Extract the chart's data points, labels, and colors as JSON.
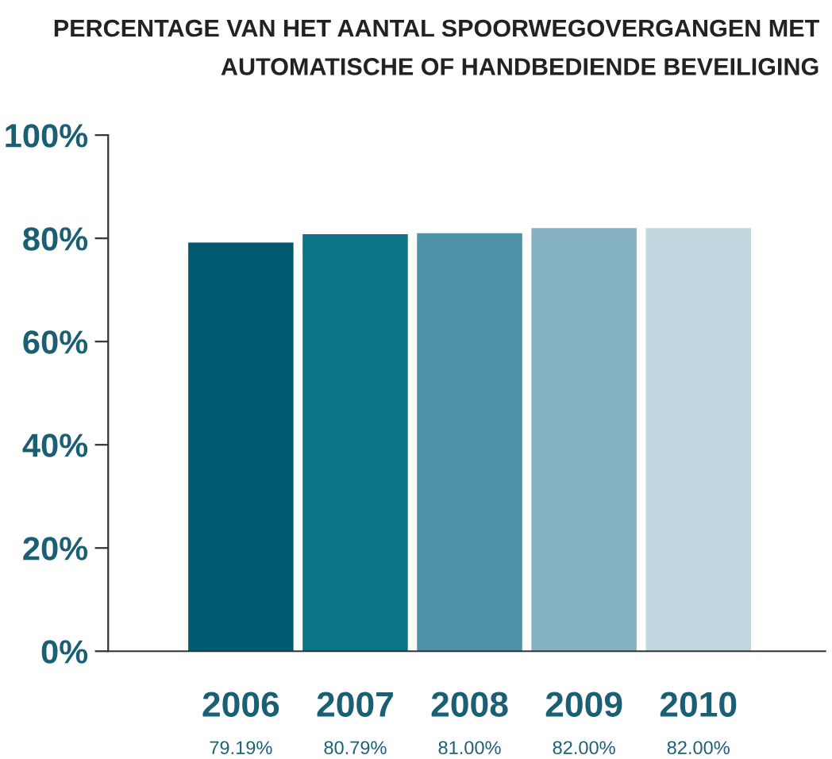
{
  "chart_data": {
    "type": "bar",
    "title": "PERCENTAGE VAN HET AANTAL SPOORWEGOVERGANGEN MET\nAUTOMATISCHE OF HANDBEDIENDE BEVEILIGING",
    "categories": [
      "2006",
      "2007",
      "2008",
      "2009",
      "2010"
    ],
    "values": [
      79.19,
      80.79,
      81.0,
      82.0,
      82.0
    ],
    "colors": [
      "#005a70",
      "#0a7489",
      "#4e93a9",
      "#86b3c3",
      "#c0d7e0"
    ],
    "value_labels": [
      "79.19%",
      "80.79%",
      "81.00%",
      "82.00%",
      "82.00%"
    ],
    "ylim": [
      0,
      100
    ],
    "yticks": [
      {
        "value": 0,
        "label": "0%"
      },
      {
        "value": 20,
        "label": "20%"
      },
      {
        "value": 40,
        "label": "40%"
      },
      {
        "value": 60,
        "label": "60%"
      },
      {
        "value": 80,
        "label": "80%"
      },
      {
        "value": 100,
        "label": "100%"
      }
    ],
    "grid": false,
    "legend": false
  }
}
